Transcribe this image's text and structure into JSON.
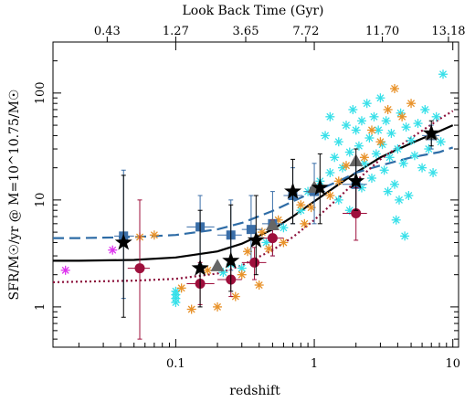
{
  "chart_data": {
    "type": "scatter",
    "title": "",
    "xlabel": "redshift",
    "ylabel": "SFR/M☉/yr  @  M=10^10.75/M☉",
    "top_axis_label": "Look Back Time (Gyr)",
    "x_scale": "log",
    "y_scale": "log",
    "xlim": [
      0.013,
      11
    ],
    "ylim": [
      0.42,
      300
    ],
    "x_tick_labels": [
      "0.1",
      "1",
      "10"
    ],
    "x_tick_values": [
      0.1,
      1,
      10
    ],
    "y_tick_labels": [
      "1",
      "10",
      "100"
    ],
    "y_tick_values": [
      1,
      10,
      100
    ],
    "top_tick_labels": [
      "0.43",
      "1.27",
      "3.65",
      "7.72",
      "11.70",
      "13.18"
    ],
    "top_tick_redshifts": [
      0.032,
      0.1,
      0.32,
      0.87,
      3.1,
      9.3
    ],
    "grid": false,
    "colors": {
      "fit_solid": "#000000",
      "fit_dashed": "#2e6ca6",
      "fit_dotted": "#8b0f3a",
      "cyan_stars": "#37e0e9",
      "orange_stars": "#e8922a",
      "magenta_stars": "#dd33ee",
      "blue_squares": "#3a6ea8",
      "red_circles": "#9e0f3c",
      "black_stars": "#000000",
      "grey_triangles": "#666666"
    },
    "series": [
      {
        "marker": "black_star",
        "points": [
          {
            "x": 0.042,
            "y": 4.0,
            "ylo": 0.8,
            "yhi": 17
          },
          {
            "x": 0.15,
            "y": 2.3,
            "ylo": 1.0,
            "yhi": 8
          },
          {
            "x": 0.25,
            "y": 2.7,
            "ylo": 1.4,
            "yhi": 9
          },
          {
            "x": 0.38,
            "y": 4.2,
            "ylo": 2.0,
            "yhi": 11
          },
          {
            "x": 0.7,
            "y": 12,
            "ylo": 6,
            "yhi": 24
          },
          {
            "x": 1.1,
            "y": 13,
            "ylo": 6,
            "yhi": 27
          },
          {
            "x": 2.0,
            "y": 15,
            "ylo": 8,
            "yhi": 30
          },
          {
            "x": 7.0,
            "y": 42,
            "ylo": 32,
            "yhi": 55
          }
        ]
      },
      {
        "marker": "blue_square",
        "points": [
          {
            "x": 0.042,
            "y": 4.6,
            "ylo": 1.2,
            "yhi": 19,
            "xlo": 0.036,
            "xhi": 0.05
          },
          {
            "x": 0.15,
            "y": 5.6,
            "ylo": 2.5,
            "yhi": 11,
            "xlo": 0.12,
            "xhi": 0.19
          },
          {
            "x": 0.25,
            "y": 4.7,
            "ylo": 2.2,
            "yhi": 10,
            "xlo": 0.2,
            "xhi": 0.3
          },
          {
            "x": 0.35,
            "y": 5.3,
            "ylo": 2.6,
            "yhi": 11,
            "xlo": 0.3,
            "xhi": 0.42
          },
          {
            "x": 0.5,
            "y": 6.0,
            "ylo": 3.0,
            "yhi": 12,
            "xlo": 0.42,
            "xhi": 0.6
          },
          {
            "x": 0.7,
            "y": 11,
            "ylo": 6,
            "yhi": 20,
            "xlo": 0.6,
            "xhi": 0.82
          },
          {
            "x": 1.0,
            "y": 12,
            "ylo": 6,
            "yhi": 22,
            "xlo": 0.85,
            "xhi": 1.2
          },
          {
            "x": 2.0,
            "y": 14,
            "ylo": 8,
            "yhi": 24,
            "xlo": 1.6,
            "xhi": 2.4
          },
          {
            "x": 7.0,
            "y": 40,
            "ylo": 30,
            "yhi": 50,
            "xlo": 6.0,
            "xhi": 8.0
          }
        ]
      },
      {
        "marker": "red_circle",
        "points": [
          {
            "x": 0.055,
            "y": 2.3,
            "ylo": 0.5,
            "yhi": 10,
            "xlo": 0.045,
            "xhi": 0.065
          },
          {
            "x": 0.15,
            "y": 1.65,
            "ylo": 1.05,
            "yhi": 2.6,
            "xlo": 0.12,
            "xhi": 0.19
          },
          {
            "x": 0.25,
            "y": 1.8,
            "ylo": 1.25,
            "yhi": 2.6,
            "xlo": 0.2,
            "xhi": 0.3
          },
          {
            "x": 0.37,
            "y": 2.6,
            "ylo": 1.8,
            "yhi": 3.6,
            "xlo": 0.3,
            "xhi": 0.45
          },
          {
            "x": 0.5,
            "y": 4.4,
            "ylo": 3.0,
            "yhi": 6.5,
            "xlo": 0.42,
            "xhi": 0.6
          },
          {
            "x": 2.0,
            "y": 7.5,
            "ylo": 4.2,
            "yhi": 13,
            "xlo": 1.6,
            "xhi": 2.4
          }
        ]
      },
      {
        "marker": "grey_triangle",
        "points": [
          {
            "x": 0.2,
            "y": 2.4
          },
          {
            "x": 0.5,
            "y": 5.8
          },
          {
            "x": 1.0,
            "y": 13
          },
          {
            "x": 2.0,
            "y": 23
          },
          {
            "x": 7.0,
            "y": 41
          }
        ]
      },
      {
        "marker": "magenta_star",
        "points": [
          {
            "x": 0.016,
            "y": 2.2
          },
          {
            "x": 0.035,
            "y": 3.4
          }
        ]
      },
      {
        "marker": "orange_star",
        "points": [
          {
            "x": 0.055,
            "y": 4.5
          },
          {
            "x": 0.07,
            "y": 4.7
          },
          {
            "x": 0.11,
            "y": 1.5
          },
          {
            "x": 0.13,
            "y": 0.95
          },
          {
            "x": 0.17,
            "y": 2.2
          },
          {
            "x": 0.2,
            "y": 1.0
          },
          {
            "x": 0.27,
            "y": 1.25
          },
          {
            "x": 0.3,
            "y": 2.0
          },
          {
            "x": 0.33,
            "y": 3.3
          },
          {
            "x": 0.42,
            "y": 5.0
          },
          {
            "x": 0.47,
            "y": 3.5
          },
          {
            "x": 0.55,
            "y": 6.5
          },
          {
            "x": 0.6,
            "y": 4.0
          },
          {
            "x": 0.8,
            "y": 9.0
          },
          {
            "x": 0.85,
            "y": 6.0
          },
          {
            "x": 0.95,
            "y": 8.5
          },
          {
            "x": 1.3,
            "y": 11
          },
          {
            "x": 1.5,
            "y": 15
          },
          {
            "x": 1.7,
            "y": 21
          },
          {
            "x": 2.3,
            "y": 25
          },
          {
            "x": 2.6,
            "y": 45
          },
          {
            "x": 3.0,
            "y": 35
          },
          {
            "x": 3.4,
            "y": 70
          },
          {
            "x": 3.8,
            "y": 110
          },
          {
            "x": 4.3,
            "y": 60
          },
          {
            "x": 5.0,
            "y": 80
          },
          {
            "x": 0.4,
            "y": 1.6
          }
        ]
      },
      {
        "marker": "cyan_star",
        "points": [
          {
            "x": 0.1,
            "y": 1.1
          },
          {
            "x": 0.1,
            "y": 1.2
          },
          {
            "x": 0.1,
            "y": 1.3
          },
          {
            "x": 0.1,
            "y": 1.4
          },
          {
            "x": 0.22,
            "y": 2.1
          },
          {
            "x": 0.25,
            "y": 2.5
          },
          {
            "x": 0.3,
            "y": 2.3
          },
          {
            "x": 0.45,
            "y": 4.0
          },
          {
            "x": 0.6,
            "y": 5.5
          },
          {
            "x": 0.8,
            "y": 8.0
          },
          {
            "x": 0.9,
            "y": 12
          },
          {
            "x": 1.1,
            "y": 15
          },
          {
            "x": 1.2,
            "y": 40
          },
          {
            "x": 1.3,
            "y": 60
          },
          {
            "x": 1.4,
            "y": 25
          },
          {
            "x": 1.5,
            "y": 35
          },
          {
            "x": 1.6,
            "y": 20
          },
          {
            "x": 1.7,
            "y": 50
          },
          {
            "x": 1.8,
            "y": 28
          },
          {
            "x": 1.9,
            "y": 70
          },
          {
            "x": 2.0,
            "y": 45
          },
          {
            "x": 2.1,
            "y": 32
          },
          {
            "x": 2.2,
            "y": 55
          },
          {
            "x": 2.3,
            "y": 22
          },
          {
            "x": 2.4,
            "y": 80
          },
          {
            "x": 2.5,
            "y": 38
          },
          {
            "x": 2.6,
            "y": 16
          },
          {
            "x": 2.7,
            "y": 60
          },
          {
            "x": 2.8,
            "y": 27
          },
          {
            "x": 2.9,
            "y": 45
          },
          {
            "x": 3.0,
            "y": 90
          },
          {
            "x": 3.1,
            "y": 33
          },
          {
            "x": 3.2,
            "y": 19
          },
          {
            "x": 3.3,
            "y": 55
          },
          {
            "x": 3.5,
            "y": 25
          },
          {
            "x": 3.6,
            "y": 42
          },
          {
            "x": 3.8,
            "y": 14
          },
          {
            "x": 4.0,
            "y": 30
          },
          {
            "x": 4.2,
            "y": 65
          },
          {
            "x": 4.4,
            "y": 22
          },
          {
            "x": 4.6,
            "y": 48
          },
          {
            "x": 4.8,
            "y": 11
          },
          {
            "x": 5.0,
            "y": 36
          },
          {
            "x": 5.3,
            "y": 26
          },
          {
            "x": 5.6,
            "y": 52
          },
          {
            "x": 6.0,
            "y": 20
          },
          {
            "x": 6.3,
            "y": 70
          },
          {
            "x": 6.7,
            "y": 30
          },
          {
            "x": 7.2,
            "y": 18
          },
          {
            "x": 7.6,
            "y": 60
          },
          {
            "x": 8.2,
            "y": 35
          },
          {
            "x": 8.5,
            "y": 150
          },
          {
            "x": 3.4,
            "y": 12
          },
          {
            "x": 3.9,
            "y": 6.5
          },
          {
            "x": 4.1,
            "y": 10
          },
          {
            "x": 4.5,
            "y": 4.6
          },
          {
            "x": 1.5,
            "y": 10
          },
          {
            "x": 1.8,
            "y": 8
          },
          {
            "x": 2.2,
            "y": 13
          },
          {
            "x": 1.3,
            "y": 18
          }
        ]
      },
      {
        "name": "",
        "style": "solid",
        "x": [
          0.013,
          0.02,
          0.05,
          0.1,
          0.2,
          0.3,
          0.5,
          0.7,
          1.0,
          1.5,
          2.0,
          3.0,
          5.0,
          8.0,
          10.0
        ],
        "y": [
          2.7,
          2.7,
          2.75,
          2.9,
          3.3,
          3.9,
          5.3,
          7.0,
          9.7,
          14,
          18,
          25,
          34,
          44,
          50
        ]
      },
      {
        "name": "",
        "style": "dashed",
        "x": [
          0.013,
          0.02,
          0.05,
          0.1,
          0.2,
          0.3,
          0.5,
          0.7,
          1.0,
          1.5,
          2.0,
          3.0,
          5.0,
          8.0,
          10.0
        ],
        "y": [
          4.4,
          4.4,
          4.5,
          4.7,
          5.3,
          6.1,
          7.9,
          9.7,
          12,
          15,
          18,
          21,
          25,
          28,
          31
        ]
      },
      {
        "name": "",
        "style": "dotted",
        "x": [
          0.013,
          0.02,
          0.05,
          0.1,
          0.2,
          0.3,
          0.5,
          0.7,
          1.0,
          1.5,
          2.0,
          3.0,
          5.0,
          8.0,
          10.0
        ],
        "y": [
          1.7,
          1.72,
          1.76,
          1.83,
          2.05,
          2.45,
          3.4,
          4.5,
          6.5,
          10.5,
          15,
          24,
          38,
          57,
          68
        ]
      }
    ]
  }
}
